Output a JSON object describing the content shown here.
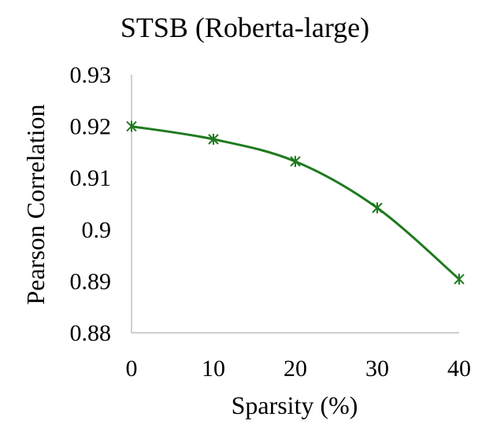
{
  "chart_data": {
    "type": "line",
    "title": "STSB (Roberta-large)",
    "xlabel": "Sparsity (%)",
    "ylabel": "Pearson Correlation",
    "x": [
      0,
      10,
      20,
      30,
      40
    ],
    "series": [
      {
        "values": [
          0.92,
          0.9175,
          0.9132,
          0.9042,
          0.8904
        ]
      }
    ],
    "xlim": [
      0,
      40
    ],
    "ylim": [
      0.88,
      0.93
    ],
    "x_ticks": [
      "0",
      "10",
      "20",
      "30",
      "40"
    ],
    "y_ticks": [
      "0.93",
      "0.92",
      "0.91",
      "0.9",
      "0.89",
      "0.88"
    ],
    "y_tick_values": [
      0.93,
      0.92,
      0.91,
      0.9,
      0.89,
      0.88
    ],
    "grid": false,
    "legend": "none",
    "marker": "asterisk",
    "smooth": true,
    "colors": {
      "series": "#1f7a1f",
      "axis": "#bfbfbf"
    }
  }
}
